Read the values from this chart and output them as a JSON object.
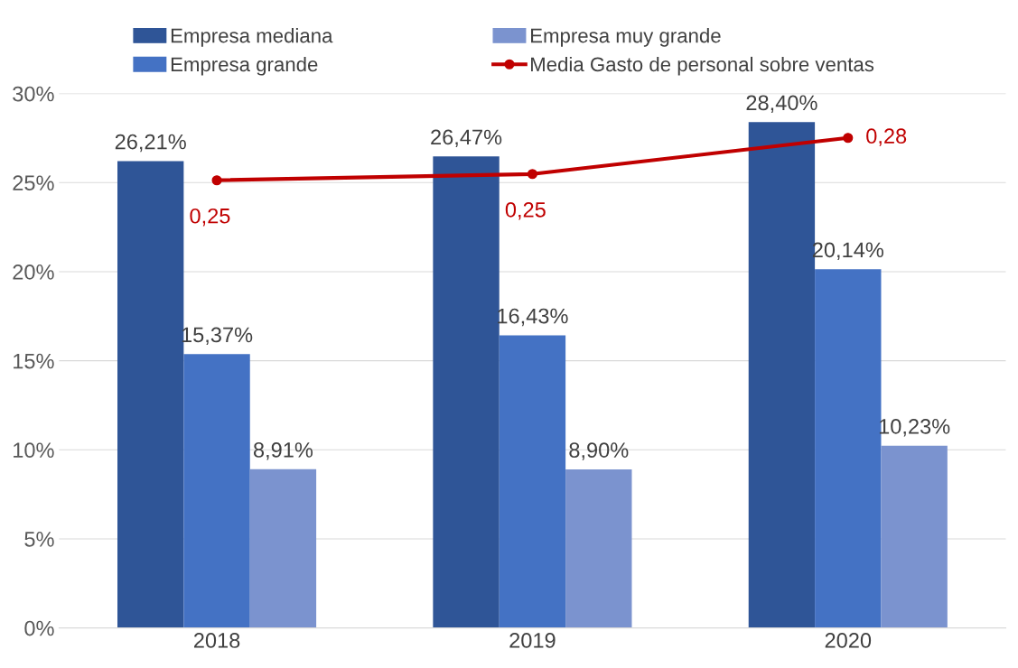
{
  "chart_data": {
    "type": "bar",
    "categories": [
      "2018",
      "2019",
      "2020"
    ],
    "series": [
      {
        "name": "Empresa mediana",
        "color": "#2f5597",
        "values": [
          0.2621,
          0.2647,
          0.284
        ],
        "value_labels": [
          "26,21%",
          "26,47%",
          "28,40%"
        ]
      },
      {
        "name": "Empresa grande",
        "color": "#4472c4",
        "values": [
          0.1537,
          0.1643,
          0.2014
        ],
        "value_labels": [
          "15,37%",
          "16,43%",
          "20,14%"
        ]
      },
      {
        "name": "Empresa muy grande",
        "color": "#7b93cf",
        "values": [
          0.0891,
          0.089,
          0.1023
        ],
        "value_labels": [
          "8,91%",
          "8,90%",
          "10,23%"
        ]
      },
      {
        "name": "Media Gasto de personal sobre ventas",
        "type": "line",
        "color": "#c00000",
        "marker": "circle",
        "values": [
          0.2513,
          0.2548,
          0.2751
        ],
        "value_labels": [
          "0,25",
          "0,25",
          "0,28"
        ]
      }
    ],
    "ylim": [
      0,
      0.3
    ],
    "yticks": [
      {
        "value": 0,
        "label": "0%"
      },
      {
        "value": 0.05,
        "label": "5%"
      },
      {
        "value": 0.1,
        "label": "10%"
      },
      {
        "value": 0.15,
        "label": "15%"
      },
      {
        "value": 0.2,
        "label": "20%"
      },
      {
        "value": 0.25,
        "label": "25%"
      },
      {
        "value": 0.3,
        "label": "30%"
      }
    ],
    "grid": "y",
    "legend": "top"
  }
}
